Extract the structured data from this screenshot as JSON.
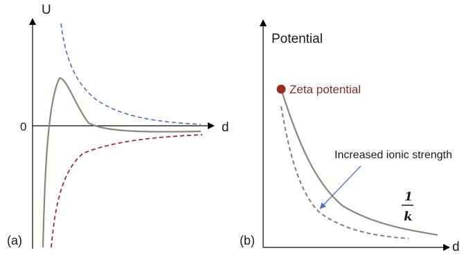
{
  "panel_a": {
    "y_axis_label": "U",
    "x_axis_label": "d",
    "zero_label": "0",
    "panel_label": "(a)"
  },
  "panel_b": {
    "y_axis_label": "Potential",
    "x_axis_label": "d",
    "panel_label": "(b)",
    "zeta_label": "Zeta potential",
    "annotation": "Increased ionic strength",
    "debye_numerator": "1",
    "debye_denominator": "k"
  },
  "colors": {
    "axis": "#000000",
    "total_curve": "#878778",
    "repulsion_curve": "#4472c4",
    "attraction_curve": "#a52a2a",
    "dashed_grey": "#7f7f7f",
    "zeta_marker": "#9c2a22",
    "zeta_text": "#8b2a22",
    "arrow": "#4472c4"
  }
}
